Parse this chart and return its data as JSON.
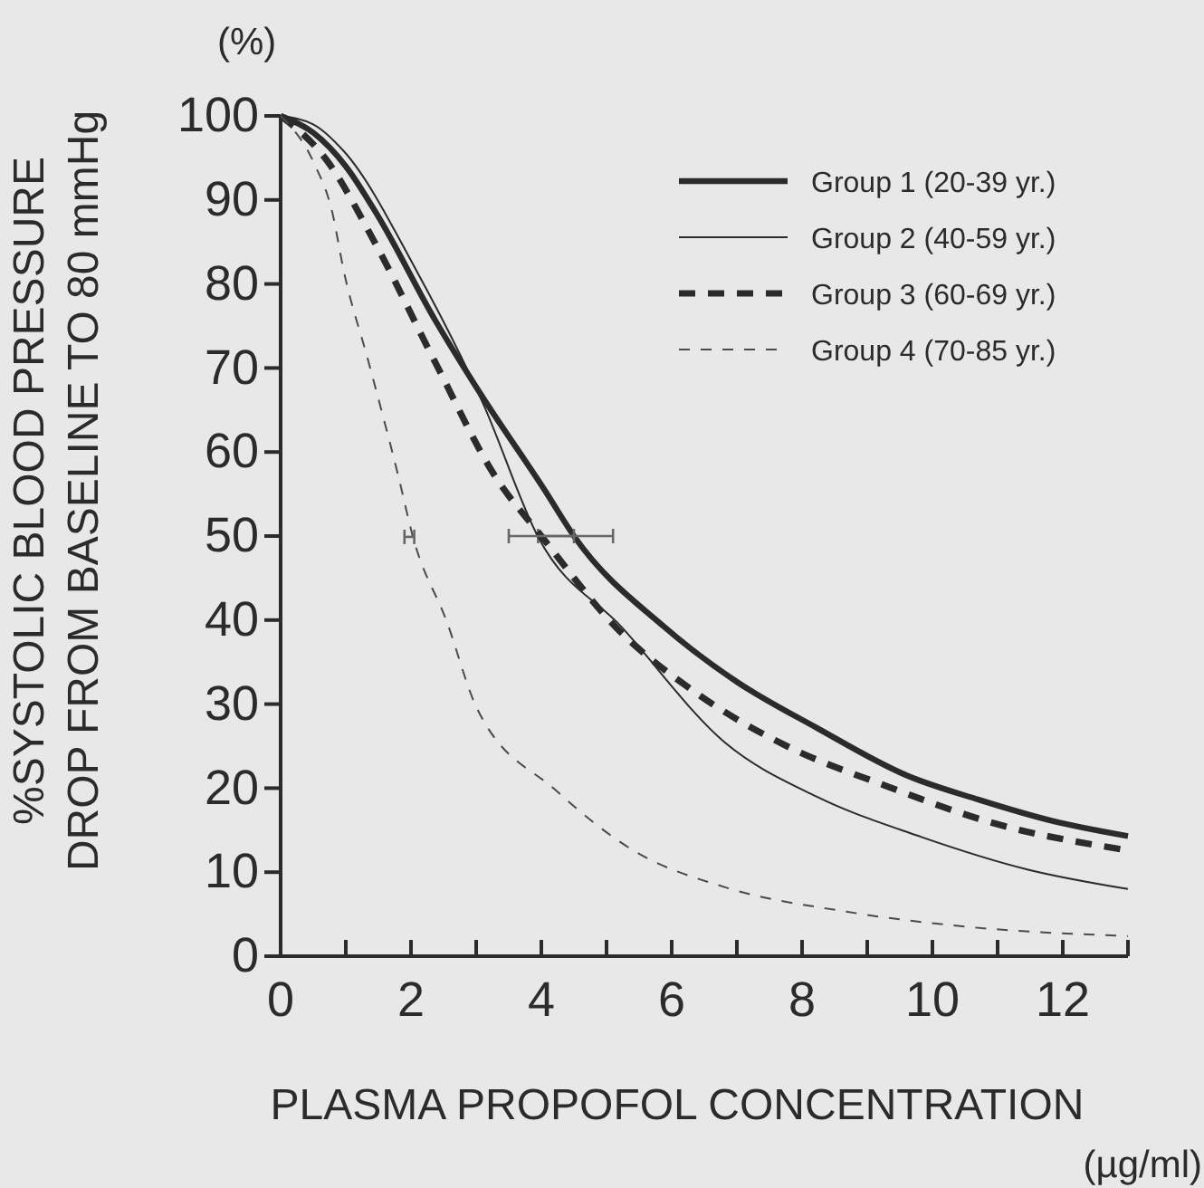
{
  "chart_data": {
    "type": "line",
    "xlabel": "PLASMA PROPOFOL CONCENTRATION",
    "ylabel": "%SYSTOLIC BLOOD PRESSURE\nDROP FROM BASELINE TO 80 mmHg",
    "annotations": [
      "(%)",
      "(µg/ml)"
    ],
    "xlim": [
      0,
      13
    ],
    "ylim": [
      0,
      100
    ],
    "xticks": [
      0,
      {
        "value": 1,
        "label": null
      },
      2,
      {
        "value": 3,
        "label": null
      },
      4,
      {
        "value": 5,
        "label": null
      },
      6,
      {
        "value": 7,
        "label": null
      },
      8,
      {
        "value": 9,
        "label": null
      },
      10,
      {
        "value": 11,
        "label": null
      },
      12,
      {
        "value": 13,
        "label": null
      }
    ],
    "yticks": [
      0,
      10,
      20,
      30,
      40,
      50,
      60,
      70,
      80,
      90,
      100
    ],
    "grid": false,
    "legend": "top right",
    "marker": "none",
    "series": [
      {
        "name": "Group 1 (20-39 yr.)",
        "color": "#2b2b2b",
        "line_style": "solid",
        "x": [
          0,
          0.5,
          1,
          1.5,
          2.37,
          3.11,
          4.04,
          4.5,
          5.9,
          7.01,
          8.22,
          9.61,
          10.72,
          11.84,
          13
        ],
        "values": [
          100,
          98,
          94,
          88,
          75.7,
          66.4,
          55.6,
          50,
          39.1,
          32.6,
          27.2,
          21.5,
          18.6,
          16.1,
          14.3
        ],
        "xerrors": [
          null,
          null,
          null,
          null,
          null,
          null,
          null,
          [
            3.95,
            5.1
          ],
          null,
          null,
          null,
          null,
          null,
          null,
          null
        ]
      },
      {
        "name": "Group 2 (40-59 yr.)",
        "color": "#2b2b2b",
        "line_style": "solid",
        "x": [
          0,
          0.5,
          0.97,
          2.09,
          3.11,
          3.95,
          5.24,
          6.82,
          8.22,
          9.79,
          11.47,
          13
        ],
        "values": [
          100,
          99,
          95.8,
          81.5,
          65.7,
          49.9,
          39.1,
          25.4,
          19,
          14.3,
          10.3,
          8
        ]
      },
      {
        "name": "Group 3 (60-69 yr.)",
        "color": "#2b2b2b",
        "line_style": "dashed",
        "x": [
          0,
          0.7,
          1.44,
          2.37,
          3.3,
          4.0,
          5.15,
          6.27,
          7.74,
          9.24,
          11,
          13
        ],
        "values": [
          100,
          94.8,
          85,
          70.7,
          57,
          50,
          39.1,
          31.9,
          25.1,
          20.4,
          15.7,
          12.6
        ],
        "xerrors": [
          null,
          null,
          null,
          null,
          null,
          [
            3.5,
            4.5
          ],
          null,
          null,
          null,
          null,
          null,
          null
        ]
      },
      {
        "name": "Group 4 (70-85 yr.)",
        "color": "#4a4a4a",
        "line_style": "dashed",
        "x": [
          0,
          0.51,
          0.79,
          0.97,
          1.35,
          1.81,
          2.03,
          2.55,
          3,
          4.23,
          5.43,
          6.82,
          8.68,
          10.53,
          13
        ],
        "values": [
          100,
          94.4,
          88.6,
          81.5,
          70.7,
          57,
          49.9,
          39.8,
          29.7,
          19.7,
          12.5,
          8.2,
          5.3,
          3.5,
          2.4
        ],
        "xerrors": [
          null,
          null,
          null,
          null,
          null,
          null,
          [
            1.9,
            2.05
          ],
          null,
          null,
          null,
          null,
          null,
          null,
          null,
          null
        ]
      }
    ]
  }
}
